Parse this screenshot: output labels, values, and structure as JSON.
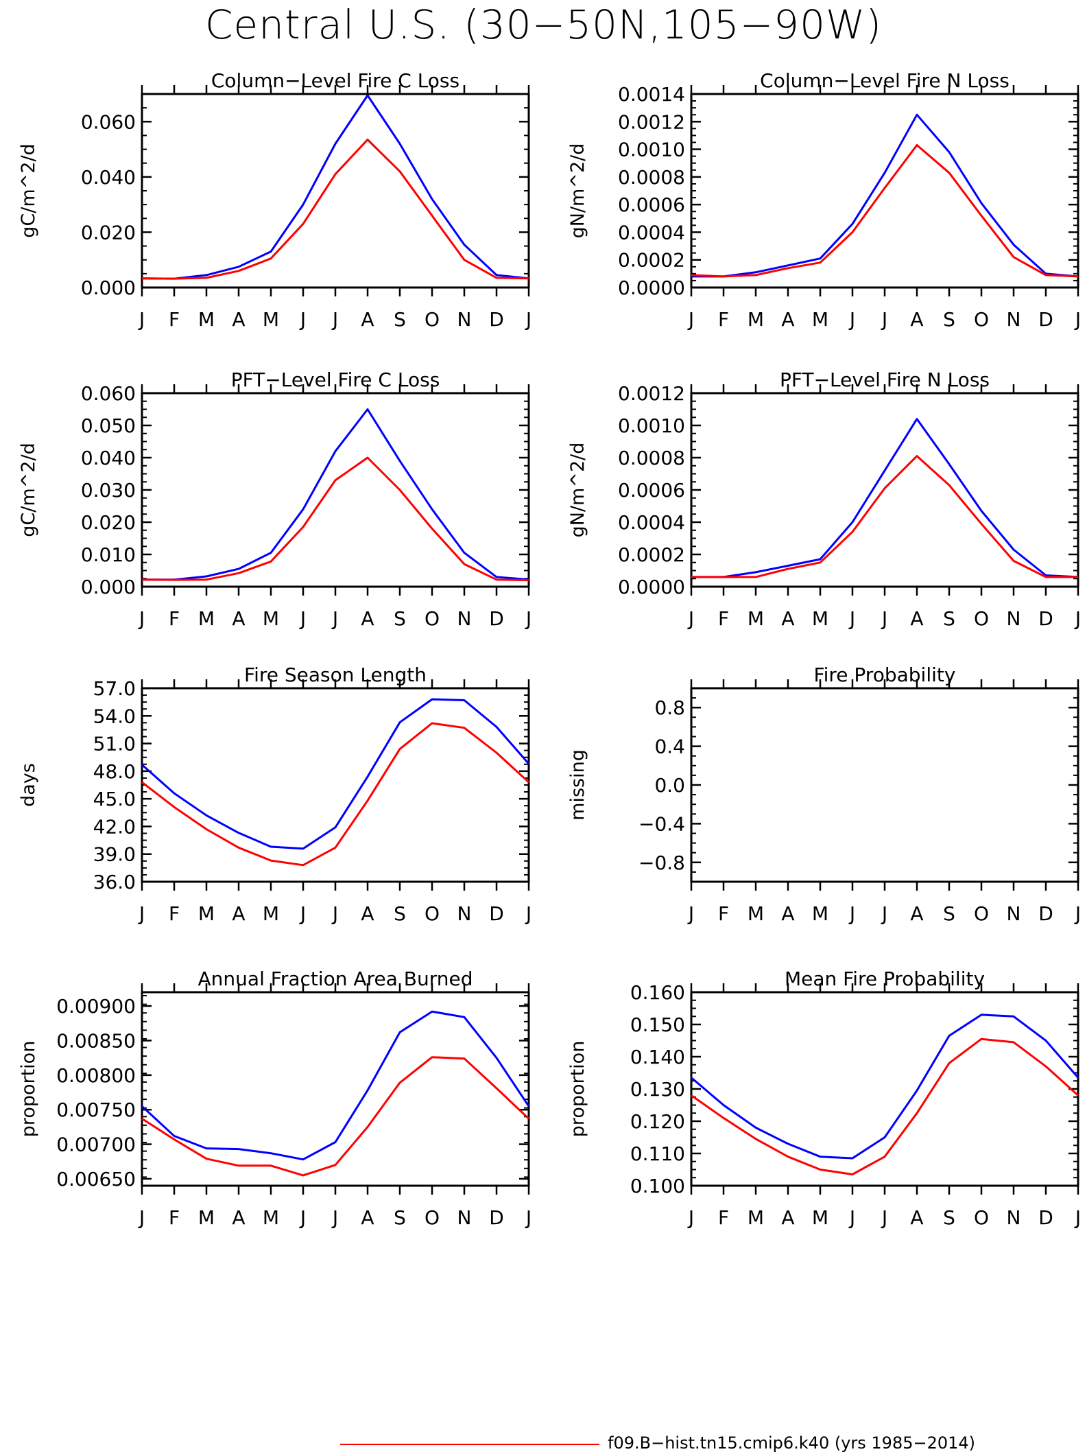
{
  "page": {
    "title": "Central U.S. (30-50N,105-90W)",
    "legend_label": "f09.B-hist.tn15.cmip6.k40 (yrs 1985-2014)",
    "legend_color": "#ff0000"
  },
  "colors": {
    "series_red": "#ff0000",
    "series_blue": "#0000ff",
    "axis": "#000000"
  },
  "chart_data": [
    {
      "type": "line",
      "title": "Column-Level Fire C Loss",
      "ylabel": "gC/m^2/d",
      "x": [
        "J",
        "F",
        "M",
        "A",
        "M",
        "J",
        "J",
        "A",
        "S",
        "O",
        "N",
        "D",
        "J"
      ],
      "ylim": [
        0,
        0.07
      ],
      "yticks": [
        "0.000",
        "0.020",
        "0.040",
        "0.060"
      ],
      "series": [
        {
          "color": "blue",
          "values": [
            0.0033,
            0.0032,
            0.0045,
            0.0075,
            0.013,
            0.03,
            0.052,
            0.0695,
            0.052,
            0.032,
            0.0155,
            0.0045,
            0.0033
          ]
        },
        {
          "color": "red",
          "values": [
            0.0033,
            0.0032,
            0.0035,
            0.006,
            0.0105,
            0.023,
            0.041,
            0.0535,
            0.042,
            0.026,
            0.01,
            0.0035,
            0.0033
          ]
        }
      ]
    },
    {
      "type": "line",
      "title": "Column-Level Fire N Loss",
      "ylabel": "gN/m^2/d",
      "x": [
        "J",
        "F",
        "M",
        "A",
        "M",
        "J",
        "J",
        "A",
        "S",
        "O",
        "N",
        "D",
        "J"
      ],
      "ylim": [
        0,
        0.0014
      ],
      "yticks": [
        "0.0000",
        "0.0002",
        "0.0004",
        "0.0006",
        "0.0008",
        "0.0010",
        "0.0012",
        "0.0014"
      ],
      "series": [
        {
          "color": "blue",
          "values": [
            8e-05,
            8e-05,
            0.00011,
            0.00016,
            0.00021,
            0.00046,
            0.00083,
            0.00125,
            0.00098,
            0.00061,
            0.00031,
            0.0001,
            8e-05
          ]
        },
        {
          "color": "red",
          "values": [
            9e-05,
            8e-05,
            9e-05,
            0.00014,
            0.00018,
            0.0004,
            0.00072,
            0.00103,
            0.00083,
            0.00052,
            0.00022,
            9e-05,
            8e-05
          ]
        }
      ]
    },
    {
      "type": "line",
      "title": "PFT-Level Fire C Loss",
      "ylabel": "gC/m^2/d",
      "x": [
        "J",
        "F",
        "M",
        "A",
        "M",
        "J",
        "J",
        "A",
        "S",
        "O",
        "N",
        "D",
        "J"
      ],
      "ylim": [
        0,
        0.06
      ],
      "yticks": [
        "0.000",
        "0.010",
        "0.020",
        "0.030",
        "0.040",
        "0.050",
        "0.060"
      ],
      "series": [
        {
          "color": "blue",
          "values": [
            0.0022,
            0.0022,
            0.0032,
            0.0055,
            0.0105,
            0.024,
            0.042,
            0.055,
            0.039,
            0.024,
            0.0105,
            0.003,
            0.0022
          ]
        },
        {
          "color": "red",
          "values": [
            0.0022,
            0.0021,
            0.0022,
            0.0042,
            0.0078,
            0.0185,
            0.033,
            0.04,
            0.03,
            0.018,
            0.007,
            0.0022,
            0.002
          ]
        }
      ]
    },
    {
      "type": "line",
      "title": "PFT-Level Fire N Loss",
      "ylabel": "gN/m^2/d",
      "x": [
        "J",
        "F",
        "M",
        "A",
        "M",
        "J",
        "J",
        "A",
        "S",
        "O",
        "N",
        "D",
        "J"
      ],
      "ylim": [
        0,
        0.0012
      ],
      "yticks": [
        "0.0000",
        "0.0002",
        "0.0004",
        "0.0006",
        "0.0008",
        "0.0010",
        "0.0012"
      ],
      "series": [
        {
          "color": "blue",
          "values": [
            6e-05,
            6e-05,
            9e-05,
            0.00013,
            0.00017,
            0.0004,
            0.00072,
            0.00104,
            0.00076,
            0.00047,
            0.00023,
            7e-05,
            6e-05
          ]
        },
        {
          "color": "red",
          "values": [
            6e-05,
            6e-05,
            6e-05,
            0.00011,
            0.00015,
            0.00034,
            0.00061,
            0.00081,
            0.00063,
            0.00039,
            0.00016,
            6e-05,
            6e-05
          ]
        }
      ]
    },
    {
      "type": "line",
      "title": "Fire Season Length",
      "ylabel": "days",
      "x": [
        "J",
        "F",
        "M",
        "A",
        "M",
        "J",
        "J",
        "A",
        "S",
        "O",
        "N",
        "D",
        "J"
      ],
      "ylim": [
        36,
        57
      ],
      "yticks": [
        "36.0",
        "39.0",
        "42.0",
        "45.0",
        "48.0",
        "51.0",
        "54.0",
        "57.0"
      ],
      "series": [
        {
          "color": "blue",
          "values": [
            48.7,
            45.6,
            43.2,
            41.3,
            39.8,
            39.6,
            41.9,
            47.4,
            53.3,
            55.8,
            55.7,
            52.8,
            48.8
          ]
        },
        {
          "color": "red",
          "values": [
            46.8,
            44.1,
            41.7,
            39.7,
            38.3,
            37.8,
            39.7,
            44.8,
            50.4,
            53.2,
            52.7,
            50.0,
            46.8
          ]
        }
      ]
    },
    {
      "type": "line",
      "title": "Fire Probability",
      "ylabel": "missing",
      "x": [
        "J",
        "F",
        "M",
        "A",
        "M",
        "J",
        "J",
        "A",
        "S",
        "O",
        "N",
        "D",
        "J"
      ],
      "ylim": [
        -1,
        1
      ],
      "yticks": [
        "-0.8",
        "-0.4",
        "0.0",
        "0.4",
        "0.8"
      ],
      "series": []
    },
    {
      "type": "line",
      "title": "Annual Fraction Area Burned",
      "ylabel": "proportion",
      "x": [
        "J",
        "F",
        "M",
        "A",
        "M",
        "J",
        "J",
        "A",
        "S",
        "O",
        "N",
        "D",
        "J"
      ],
      "ylim": [
        0.0064,
        0.0092
      ],
      "yticks": [
        "0.00650",
        "0.00700",
        "0.00750",
        "0.00800",
        "0.00850",
        "0.00900"
      ],
      "series": [
        {
          "color": "blue",
          "values": [
            0.00755,
            0.00712,
            0.00694,
            0.00693,
            0.00687,
            0.00678,
            0.00703,
            0.00778,
            0.00862,
            0.00892,
            0.00884,
            0.00825,
            0.00755
          ]
        },
        {
          "color": "red",
          "values": [
            0.00737,
            0.00707,
            0.00679,
            0.00669,
            0.00669,
            0.00655,
            0.0067,
            0.00725,
            0.00789,
            0.00826,
            0.00824,
            0.00781,
            0.00737
          ]
        }
      ]
    },
    {
      "type": "line",
      "title": "Mean Fire Probability",
      "ylabel": "proportion",
      "x": [
        "J",
        "F",
        "M",
        "A",
        "M",
        "J",
        "J",
        "A",
        "S",
        "O",
        "N",
        "D",
        "J"
      ],
      "ylim": [
        0.1,
        0.16
      ],
      "yticks": [
        "0.100",
        "0.110",
        "0.120",
        "0.130",
        "0.140",
        "0.150",
        "0.160"
      ],
      "series": [
        {
          "color": "blue",
          "values": [
            0.1335,
            0.125,
            0.118,
            0.113,
            0.109,
            0.1085,
            0.115,
            0.1295,
            0.1465,
            0.153,
            0.1525,
            0.145,
            0.1335
          ]
        },
        {
          "color": "red",
          "values": [
            0.128,
            0.121,
            0.1145,
            0.109,
            0.105,
            0.1035,
            0.109,
            0.1225,
            0.138,
            0.1455,
            0.1445,
            0.137,
            0.128
          ]
        }
      ]
    }
  ]
}
